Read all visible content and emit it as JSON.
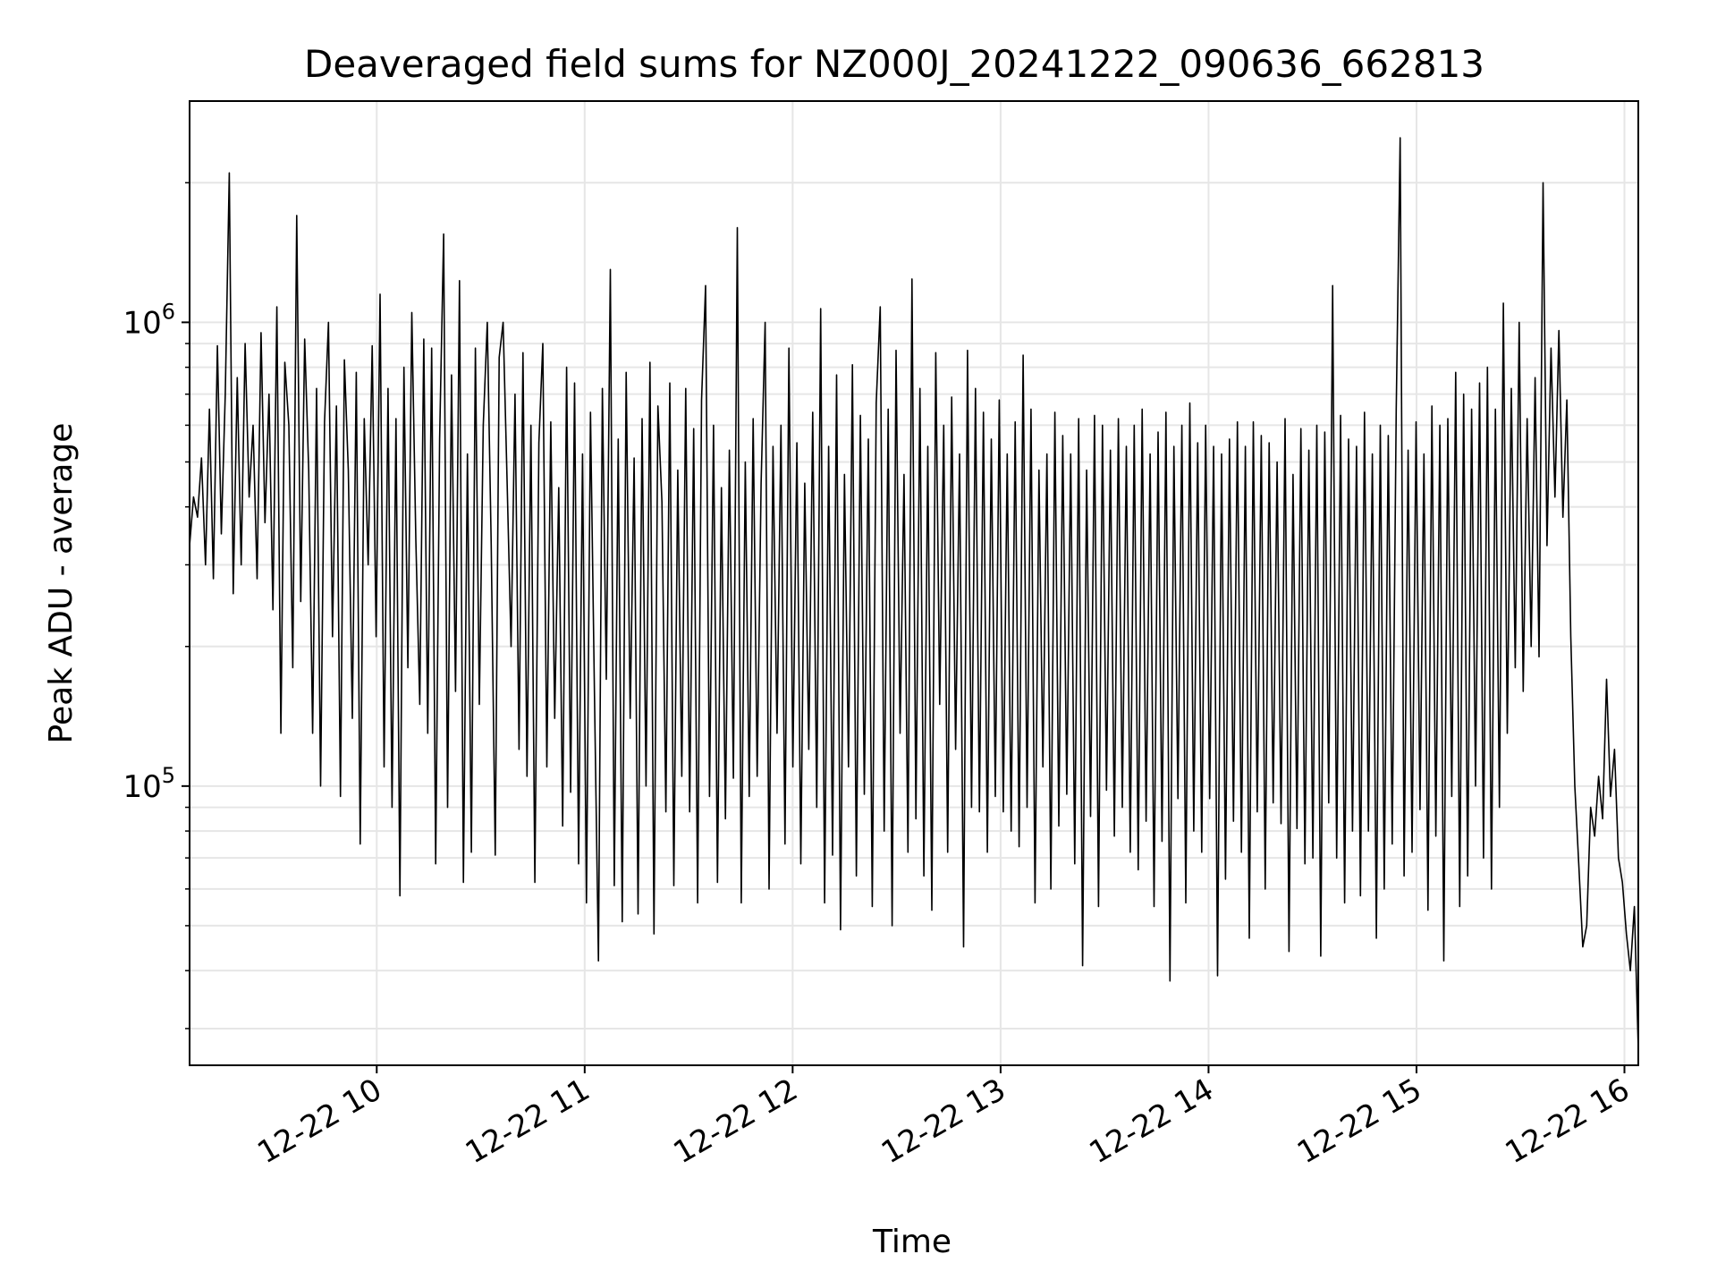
{
  "chart_data": {
    "type": "line",
    "title": "Deaveraged field sums for NZ000J_20241222_090636_662813",
    "xlabel": "Time",
    "ylabel": "Peak ADU - average",
    "yscale": "log",
    "xlim": [
      "2024-12-22 09:06",
      "2024-12-22 16:04"
    ],
    "ylim": [
      25000,
      3000000
    ],
    "grid": true,
    "line_color": "#000000",
    "x_ticks": [
      "12-22 10",
      "12-22 11",
      "12-22 12",
      "12-22 13",
      "12-22 14",
      "12-22 15",
      "12-22 16"
    ],
    "y_ticks": [
      {
        "base": "10",
        "exp": "5",
        "value": 100000
      },
      {
        "base": "10",
        "exp": "6",
        "value": 1000000
      }
    ],
    "series": [
      {
        "x_start": "2024-12-22 09:06",
        "x_end": "2024-12-22 16:04",
        "approximate": true,
        "values": [
          330000,
          420000,
          380000,
          510000,
          300000,
          650000,
          280000,
          890000,
          350000,
          700000,
          2100000,
          260000,
          760000,
          300000,
          900000,
          420000,
          600000,
          280000,
          950000,
          370000,
          700000,
          240000,
          1080000,
          130000,
          820000,
          600000,
          180000,
          1700000,
          250000,
          920000,
          480000,
          130000,
          720000,
          100000,
          610000,
          1000000,
          210000,
          660000,
          95000,
          830000,
          480000,
          140000,
          780000,
          75000,
          620000,
          300000,
          890000,
          210000,
          1150000,
          110000,
          720000,
          90000,
          620000,
          58000,
          800000,
          180000,
          1050000,
          340000,
          150000,
          920000,
          130000,
          880000,
          68000,
          560000,
          1550000,
          90000,
          770000,
          160000,
          1230000,
          62000,
          520000,
          72000,
          880000,
          150000,
          600000,
          1000000,
          330000,
          71000,
          840000,
          1000000,
          450000,
          200000,
          700000,
          120000,
          860000,
          105000,
          600000,
          62000,
          550000,
          900000,
          110000,
          610000,
          140000,
          440000,
          82000,
          800000,
          97000,
          740000,
          68000,
          520000,
          56000,
          640000,
          160000,
          42000,
          720000,
          170000,
          1300000,
          61000,
          560000,
          51000,
          780000,
          140000,
          510000,
          53000,
          620000,
          100000,
          820000,
          48000,
          660000,
          410000,
          88000,
          740000,
          61000,
          480000,
          105000,
          720000,
          88000,
          590000,
          56000,
          680000,
          1200000,
          95000,
          600000,
          62000,
          440000,
          85000,
          530000,
          104000,
          1600000,
          56000,
          500000,
          95000,
          620000,
          105000,
          450000,
          1000000,
          60000,
          540000,
          130000,
          600000,
          75000,
          880000,
          110000,
          550000,
          68000,
          450000,
          120000,
          640000,
          90000,
          1070000,
          56000,
          540000,
          71000,
          770000,
          49000,
          470000,
          110000,
          810000,
          64000,
          630000,
          96000,
          560000,
          55000,
          670000,
          1080000,
          80000,
          650000,
          50000,
          870000,
          130000,
          470000,
          72000,
          1240000,
          85000,
          720000,
          64000,
          540000,
          54000,
          860000,
          150000,
          600000,
          72000,
          690000,
          120000,
          520000,
          45000,
          870000,
          90000,
          720000,
          88000,
          640000,
          72000,
          560000,
          95000,
          680000,
          88000,
          520000,
          80000,
          610000,
          74000,
          850000,
          90000,
          650000,
          56000,
          480000,
          110000,
          520000,
          60000,
          640000,
          82000,
          570000,
          96000,
          520000,
          68000,
          620000,
          41000,
          480000,
          86000,
          630000,
          55000,
          600000,
          98000,
          530000,
          78000,
          620000,
          90000,
          540000,
          72000,
          600000,
          66000,
          650000,
          84000,
          520000,
          55000,
          580000,
          76000,
          640000,
          38000,
          540000,
          94000,
          600000,
          56000,
          670000,
          80000,
          550000,
          72000,
          600000,
          94000,
          540000,
          39000,
          520000,
          63000,
          560000,
          84000,
          610000,
          72000,
          540000,
          47000,
          610000,
          88000,
          570000,
          60000,
          550000,
          92000,
          500000,
          83000,
          620000,
          44000,
          470000,
          81000,
          590000,
          68000,
          530000,
          70000,
          600000,
          43000,
          580000,
          92000,
          1200000,
          70000,
          630000,
          56000,
          560000,
          80000,
          540000,
          58000,
          640000,
          80000,
          520000,
          47000,
          600000,
          60000,
          570000,
          75000,
          650000,
          2500000,
          64000,
          530000,
          72000,
          610000,
          89000,
          520000,
          54000,
          660000,
          78000,
          600000,
          42000,
          620000,
          95000,
          780000,
          55000,
          700000,
          64000,
          650000,
          100000,
          740000,
          70000,
          800000,
          60000,
          650000,
          90000,
          1100000,
          130000,
          720000,
          180000,
          1000000,
          160000,
          620000,
          200000,
          760000,
          190000,
          2000000,
          330000,
          880000,
          420000,
          960000,
          380000,
          680000,
          210000,
          100000,
          68000,
          45000,
          50000,
          90000,
          78000,
          105000,
          85000,
          170000,
          95000,
          120000,
          70000,
          62000,
          48000,
          40000,
          55000,
          27000
        ]
      }
    ]
  }
}
